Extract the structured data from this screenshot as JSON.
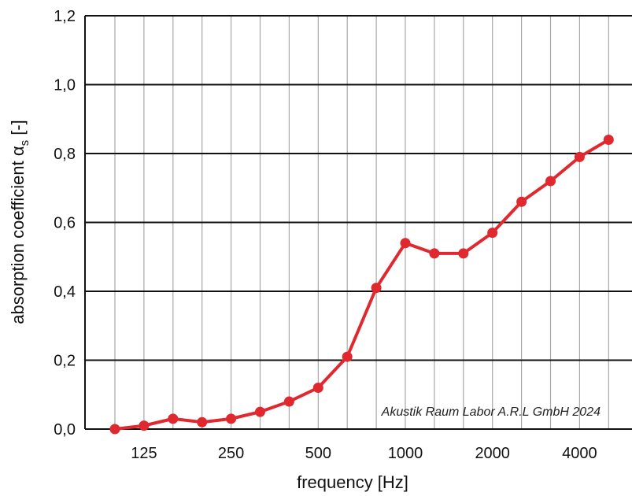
{
  "chart_data": {
    "type": "line",
    "xlabel": "frequency [Hz]",
    "ylabel_main": "absorption coefficient α",
    "ylabel_sub": "s",
    "ylabel_suffix": " [-]",
    "annotation": "Akustik Raum Labor A.R.L GmbH 2024",
    "x_tick_labels": [
      "125",
      "250",
      "500",
      "1000",
      "2000",
      "4000"
    ],
    "y_tick_labels": [
      "0,0",
      "0,2",
      "0,4",
      "0,6",
      "0,8",
      "1,0",
      "1,2"
    ],
    "ylim": [
      0,
      1.2
    ],
    "grid": true,
    "x": [
      100,
      125,
      160,
      200,
      250,
      315,
      400,
      500,
      630,
      800,
      1000,
      1250,
      1600,
      2000,
      2500,
      3150,
      4000,
      5000
    ],
    "series": [
      {
        "values": [
          0.0,
          0.01,
          0.03,
          0.02,
          0.03,
          0.05,
          0.08,
          0.12,
          0.21,
          0.41,
          0.54,
          0.51,
          0.51,
          0.57,
          0.66,
          0.72,
          0.79,
          0.84
        ],
        "color": "#e0282f"
      }
    ]
  }
}
